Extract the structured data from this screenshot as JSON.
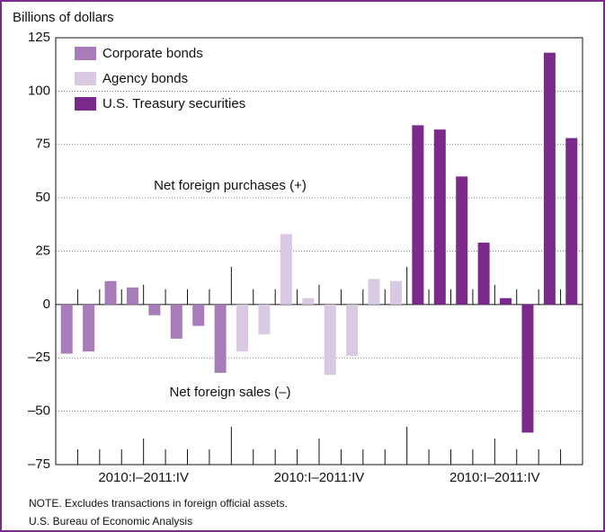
{
  "chart_data": {
    "type": "grouped-sequence-bar",
    "y_label": "Billions of dollars",
    "series": [
      {
        "name": "Corporate bonds",
        "color": "#a87bb9",
        "values": [
          -23,
          -22,
          11,
          8,
          -5,
          -16,
          -10,
          -32
        ]
      },
      {
        "name": "Agency bonds",
        "color": "#d9c9e3",
        "values": [
          -22,
          -14,
          33,
          3,
          -33,
          -24,
          12,
          11
        ]
      },
      {
        "name": "U.S. Treasury securities",
        "color": "#7b2a8c",
        "values": [
          84,
          82,
          60,
          29,
          3,
          -60,
          118,
          78
        ]
      }
    ],
    "group_labels": [
      "2010:I–2011:IV",
      "2010:I–2011:IV",
      "2010:I–2011:IV"
    ],
    "ylim": [
      -75,
      125
    ],
    "yticks": [
      {
        "value": -75,
        "label": "–75"
      },
      {
        "value": -50,
        "label": "–50"
      },
      {
        "value": -25,
        "label": "–25"
      },
      0,
      25,
      50,
      75,
      100,
      125
    ],
    "grid": true,
    "annotations": [
      "Net foreign purchases (+)",
      "Net foreign sales (–)"
    ],
    "note": "NOTE. Excludes transactions in foreign official assets.",
    "source": "U.S. Bureau of Economic Analysis"
  }
}
